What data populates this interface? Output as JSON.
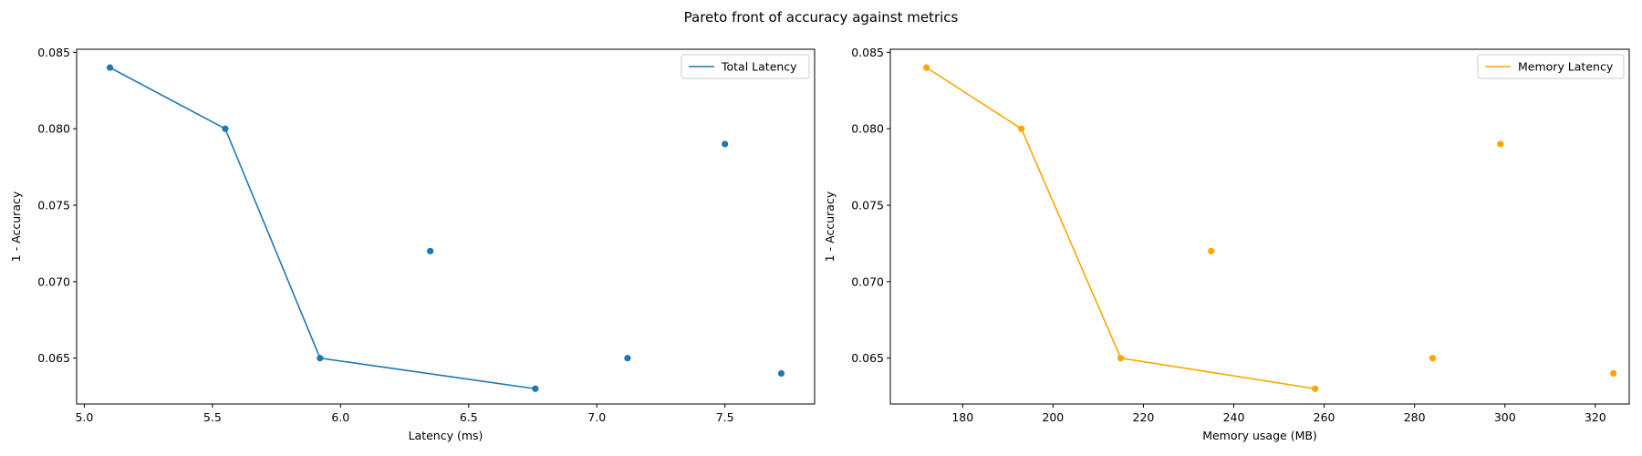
{
  "figure": {
    "suptitle": "Pareto front of accuracy against metrics"
  },
  "chart_data": [
    {
      "type": "scatter",
      "xlabel": "Latency (ms)",
      "ylabel": "1 - Accuracy",
      "xlim": [
        4.97,
        7.85
      ],
      "ylim": [
        0.062,
        0.0852
      ],
      "xticks": [
        5.0,
        5.5,
        6.0,
        6.5,
        7.0,
        7.5
      ],
      "xtick_labels": [
        "5.0",
        "5.5",
        "6.0",
        "6.5",
        "7.0",
        "7.5"
      ],
      "yticks": [
        0.065,
        0.07,
        0.075,
        0.08,
        0.085
      ],
      "ytick_labels": [
        "0.065",
        "0.070",
        "0.075",
        "0.080",
        "0.085"
      ],
      "color": "#1f77b4",
      "legend": {
        "position": "upper-right",
        "entries": [
          "Total Latency"
        ]
      },
      "points": [
        {
          "x": 5.1,
          "y": 0.084
        },
        {
          "x": 5.55,
          "y": 0.08
        },
        {
          "x": 5.92,
          "y": 0.065
        },
        {
          "x": 6.76,
          "y": 0.063
        },
        {
          "x": 6.35,
          "y": 0.072
        },
        {
          "x": 7.12,
          "y": 0.065
        },
        {
          "x": 7.5,
          "y": 0.079
        },
        {
          "x": 7.72,
          "y": 0.064
        }
      ],
      "pareto_line": {
        "name": "Total Latency",
        "x": [
          5.1,
          5.55,
          5.92,
          6.76
        ],
        "y": [
          0.084,
          0.08,
          0.065,
          0.063
        ]
      }
    },
    {
      "type": "scatter",
      "xlabel": "Memory usage (MB)",
      "ylabel": "1 - Accuracy",
      "xlim": [
        164,
        327.5
      ],
      "ylim": [
        0.062,
        0.0852
      ],
      "xticks": [
        180,
        200,
        220,
        240,
        260,
        280,
        300,
        320
      ],
      "xtick_labels": [
        "180",
        "200",
        "220",
        "240",
        "260",
        "280",
        "300",
        "320"
      ],
      "yticks": [
        0.065,
        0.07,
        0.075,
        0.08,
        0.085
      ],
      "ytick_labels": [
        "0.065",
        "0.070",
        "0.075",
        "0.080",
        "0.085"
      ],
      "color": "#ffa500",
      "legend": {
        "position": "upper-right",
        "entries": [
          "Memory Latency"
        ]
      },
      "points": [
        {
          "x": 172,
          "y": 0.084
        },
        {
          "x": 193,
          "y": 0.08
        },
        {
          "x": 215,
          "y": 0.065
        },
        {
          "x": 258,
          "y": 0.063
        },
        {
          "x": 235,
          "y": 0.072
        },
        {
          "x": 284,
          "y": 0.065
        },
        {
          "x": 299,
          "y": 0.079
        },
        {
          "x": 324,
          "y": 0.064
        }
      ],
      "pareto_line": {
        "name": "Memory Latency",
        "x": [
          172,
          193,
          215,
          258
        ],
        "y": [
          0.084,
          0.08,
          0.065,
          0.063
        ]
      }
    }
  ]
}
